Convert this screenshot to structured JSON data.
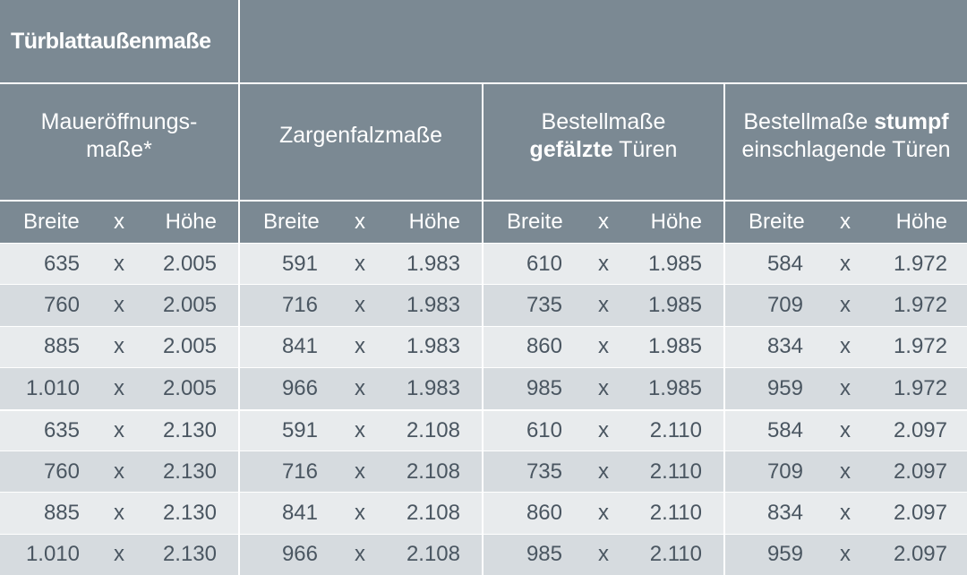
{
  "header": {
    "title": "Türblattaußenmaße"
  },
  "groups": [
    {
      "line1": "Maueröffnungs-",
      "line2": "maße*"
    },
    {
      "line1": "Zargenfalzmaße",
      "line2": ""
    },
    {
      "line1_a": "Bestellmaße",
      "line2_bold": "gefälzte",
      "line2_rest": " Türen"
    },
    {
      "line1_a": "Bestellmaße ",
      "line1_bold": "stumpf",
      "line2": "einschlagende Türen"
    }
  ],
  "subheader": {
    "breite": "Breite",
    "x": "x",
    "hoehe": "Höhe"
  },
  "rows": [
    [
      "635",
      "2.005",
      "591",
      "1.983",
      "610",
      "1.985",
      "584",
      "1.972"
    ],
    [
      "760",
      "2.005",
      "716",
      "1.983",
      "735",
      "1.985",
      "709",
      "1.972"
    ],
    [
      "885",
      "2.005",
      "841",
      "1.983",
      "860",
      "1.985",
      "834",
      "1.972"
    ],
    [
      "1.010",
      "2.005",
      "966",
      "1.983",
      "985",
      "1.985",
      "959",
      "1.972"
    ],
    [
      "635",
      "2.130",
      "591",
      "2.108",
      "610",
      "2.110",
      "584",
      "2.097"
    ],
    [
      "760",
      "2.130",
      "716",
      "2.108",
      "735",
      "2.110",
      "709",
      "2.097"
    ],
    [
      "885",
      "2.130",
      "841",
      "2.108",
      "860",
      "2.110",
      "834",
      "2.097"
    ],
    [
      "1.010",
      "2.130",
      "966",
      "2.108",
      "985",
      "2.110",
      "959",
      "2.097"
    ]
  ],
  "colors": {
    "header_bg": "#7b8993",
    "row_dark": "#d6dbdf",
    "row_light": "#e8ebed",
    "text": "#4a5661"
  }
}
